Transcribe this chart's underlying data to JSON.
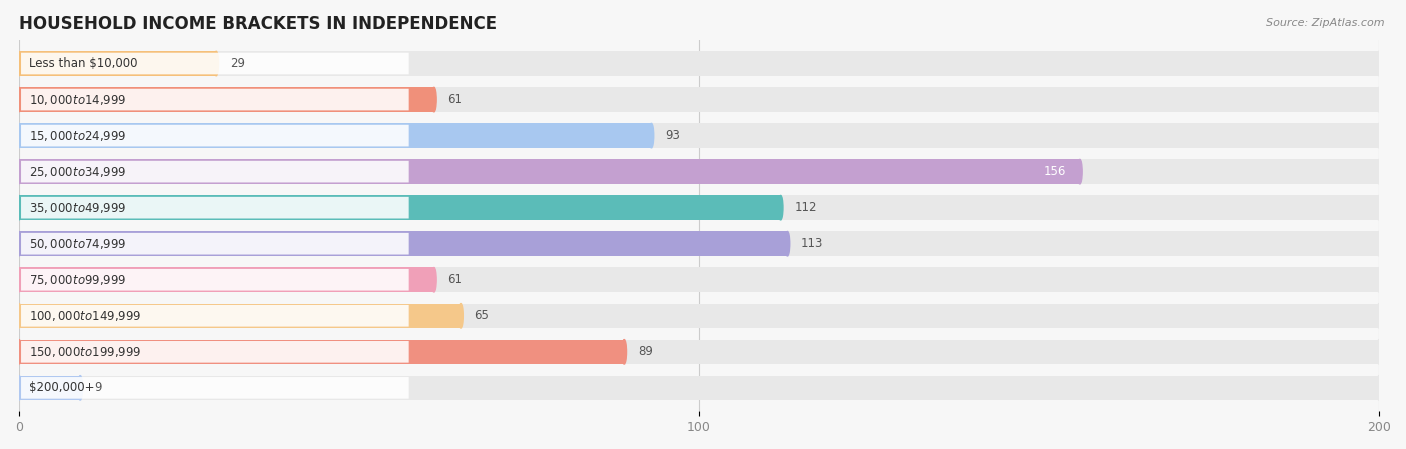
{
  "title": "HOUSEHOLD INCOME BRACKETS IN INDEPENDENCE",
  "source": "Source: ZipAtlas.com",
  "categories": [
    "Less than $10,000",
    "$10,000 to $14,999",
    "$15,000 to $24,999",
    "$25,000 to $34,999",
    "$35,000 to $49,999",
    "$50,000 to $74,999",
    "$75,000 to $99,999",
    "$100,000 to $149,999",
    "$150,000 to $199,999",
    "$200,000+"
  ],
  "values": [
    29,
    61,
    93,
    156,
    112,
    113,
    61,
    65,
    89,
    9
  ],
  "bar_colors": [
    "#f5c07a",
    "#f0907a",
    "#a8c8f0",
    "#c4a0d0",
    "#5bbcb8",
    "#a8a0d8",
    "#f0a0b8",
    "#f5c88a",
    "#f09080",
    "#b0c8f0"
  ],
  "xlim": [
    0,
    200
  ],
  "xticks": [
    0,
    100,
    200
  ],
  "background_color": "#f7f7f7",
  "bar_bg_color": "#e8e8e8",
  "title_fontsize": 12,
  "label_fontsize": 8.5,
  "value_fontsize": 8.5,
  "bar_height": 0.68,
  "figsize": [
    14.06,
    4.49
  ],
  "dpi": 100
}
